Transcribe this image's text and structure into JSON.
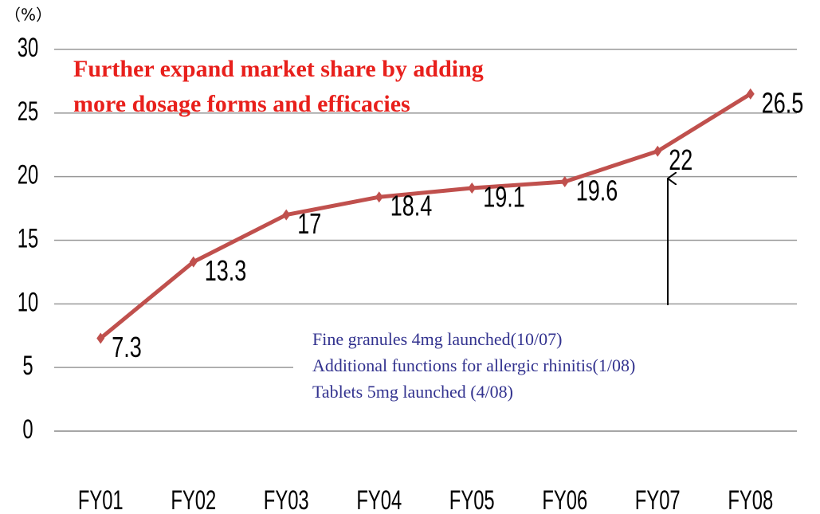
{
  "chart_data": {
    "type": "line",
    "unit_label": "（%）",
    "categories": [
      "FY01",
      "FY02",
      "FY03",
      "FY04",
      "FY05",
      "FY06",
      "FY07",
      "FY08"
    ],
    "series": [
      {
        "name": "Market share",
        "color": "#c0504d",
        "values": [
          7.3,
          13.3,
          17,
          18.4,
          19.1,
          19.6,
          22,
          26.5
        ]
      }
    ],
    "ylim": [
      0,
      30
    ],
    "yticks": [
      0,
      5,
      10,
      15,
      20,
      25,
      30
    ],
    "grid": true,
    "annotation_top": [
      "Further expand market share by adding",
      "more dosage forms and efficacies"
    ],
    "annotation_bottom": [
      "Fine granules 4mg launched(10/07)",
      "Additional functions for allergic rhinitis(1/08)",
      "Tablets 5mg launched (4/08)"
    ]
  }
}
